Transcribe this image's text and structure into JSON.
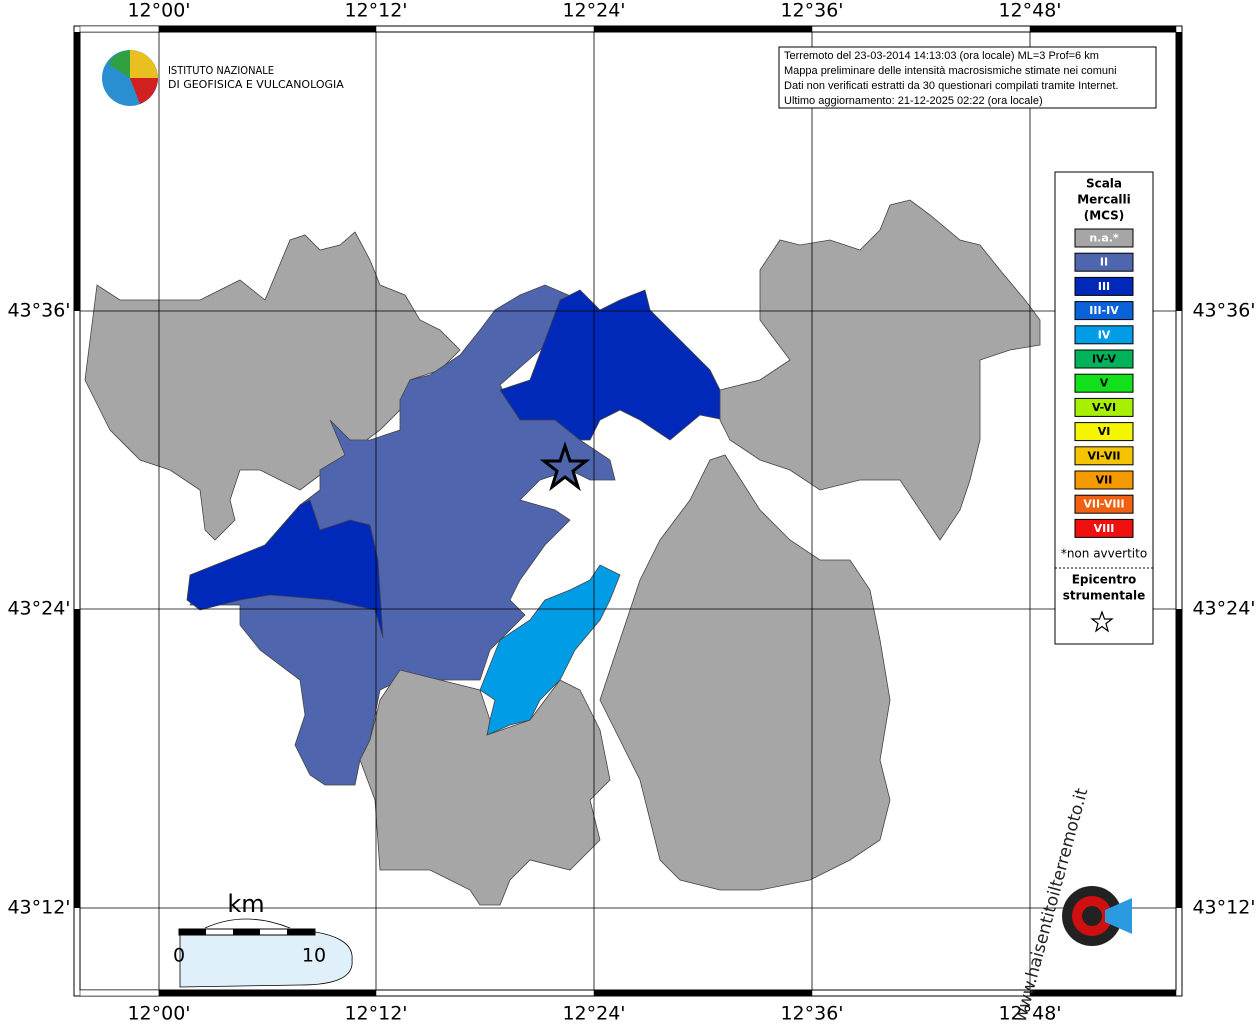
{
  "map": {
    "lon_labels": [
      "12°00'",
      "12°12'",
      "12°24'",
      "12°36'",
      "12°48'"
    ],
    "lat_labels": [
      "43°36'",
      "43°24'",
      "43°12'"
    ],
    "info": [
      "Terremoto del 23-03-2014 14:13:03 (ora locale) ML=3 Prof=6 km",
      "Mappa preliminare delle intensità macrosismiche stimate nei comuni",
      "Dati non verificati estratti da 30 questionari compilati tramite Internet.",
      "Ultimo aggiornamento: 21-12-2025 02:22 (ora locale)"
    ],
    "institute": [
      "ISTITUTO NAZIONALE",
      "DI GEOFISICA E VULCANOLOGIA"
    ],
    "legend": {
      "title": [
        "Scala",
        "Mercalli",
        "(MCS)"
      ],
      "items": [
        {
          "label": "n.a.*",
          "color": "#a6a6a6"
        },
        {
          "label": "II",
          "color": "#4f66ae"
        },
        {
          "label": "III",
          "color": "#0029b9"
        },
        {
          "label": "III-IV",
          "color": "#0a62d9"
        },
        {
          "label": "IV",
          "color": "#009de6"
        },
        {
          "label": "IV-V",
          "color": "#00b35a"
        },
        {
          "label": "V",
          "color": "#11e01a"
        },
        {
          "label": "V-VI",
          "color": "#a6f000"
        },
        {
          "label": "VI",
          "color": "#f5f500"
        },
        {
          "label": "VI-VII",
          "color": "#f5c400"
        },
        {
          "label": "VII",
          "color": "#f59a00"
        },
        {
          "label": "VII-VIII",
          "color": "#f06010"
        },
        {
          "label": "VIII",
          "color": "#f01010"
        }
      ],
      "note": "*non avvertito",
      "epicenter": [
        "Epicentro",
        "strumentale"
      ]
    },
    "scale": {
      "unit": "km",
      "start": "0",
      "end": "10"
    },
    "site": "www.haisentitoilterremoto.it"
  }
}
